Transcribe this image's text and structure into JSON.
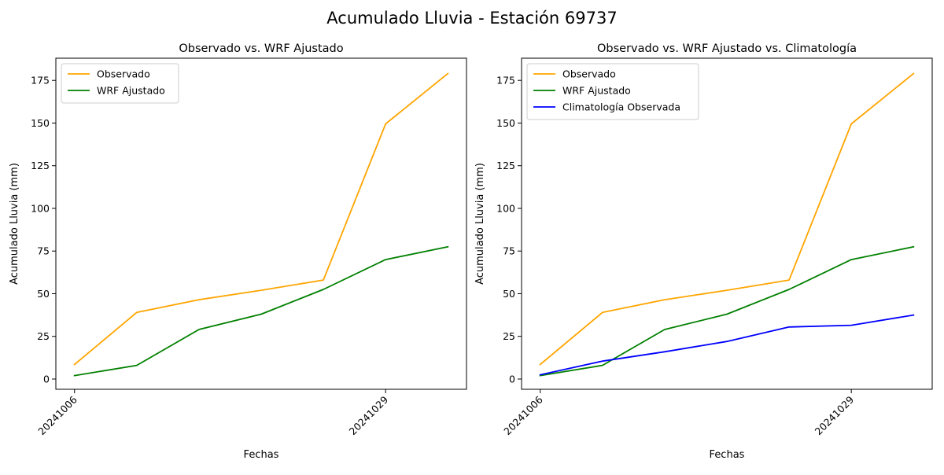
{
  "figure": {
    "suptitle": "Acumulado Lluvia - Estación 69737"
  },
  "colors": {
    "observado": "#ffa500",
    "wrf": "#008000",
    "clima": "#0000ff"
  },
  "chart_data": [
    {
      "type": "line",
      "title": "Observado vs. WRF Ajustado",
      "xlabel": "Fechas",
      "ylabel": "Acumulado Lluvia (mm)",
      "x_ticks": [
        {
          "index": 0,
          "label": "20241006"
        },
        {
          "index": 5,
          "label": "20241029"
        }
      ],
      "xlim": [
        -0.3,
        6.3
      ],
      "ylim": [
        -6,
        188
      ],
      "y_ticks": [
        0,
        25,
        50,
        75,
        100,
        125,
        150,
        175
      ],
      "legend": "top-left",
      "grid": false,
      "series": [
        {
          "name": "Observado",
          "color": "#ffa500",
          "values": [
            8.5,
            39,
            46.5,
            52,
            58,
            149.5,
            179
          ]
        },
        {
          "name": "WRF Ajustado",
          "color": "#008000",
          "values": [
            2,
            8,
            29,
            38,
            52.5,
            70,
            77.5
          ]
        }
      ]
    },
    {
      "type": "line",
      "title": "Observado vs. WRF Ajustado vs. Climatología",
      "xlabel": "Fechas",
      "ylabel": "Acumulado Lluvia (mm)",
      "x_ticks": [
        {
          "index": 0,
          "label": "20241006"
        },
        {
          "index": 5,
          "label": "20241029"
        }
      ],
      "xlim": [
        -0.3,
        6.3
      ],
      "ylim": [
        -6,
        188
      ],
      "y_ticks": [
        0,
        25,
        50,
        75,
        100,
        125,
        150,
        175
      ],
      "legend": "top-left",
      "grid": false,
      "series": [
        {
          "name": "Observado",
          "color": "#ffa500",
          "values": [
            8.5,
            39,
            46.5,
            52,
            58,
            149.5,
            179
          ]
        },
        {
          "name": "WRF Ajustado",
          "color": "#008000",
          "values": [
            2,
            8,
            29,
            38,
            52.5,
            70,
            77.5
          ]
        },
        {
          "name": "Climatología Observada",
          "color": "#0000ff",
          "values": [
            2.5,
            10.5,
            16,
            22,
            30.5,
            31.5,
            37.5
          ]
        }
      ]
    }
  ]
}
